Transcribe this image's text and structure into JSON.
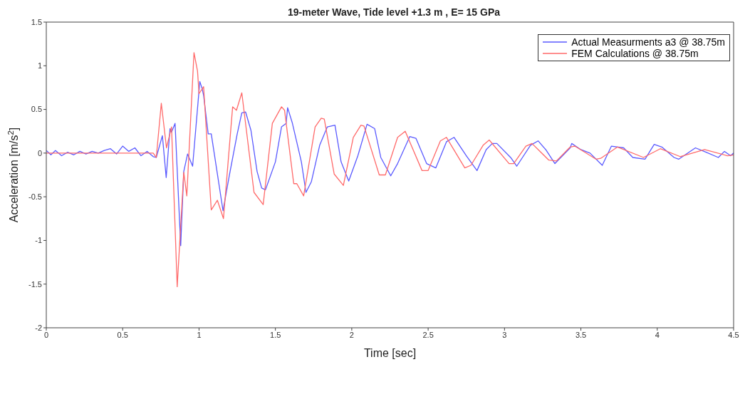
{
  "chart_data": {
    "type": "line",
    "title": "19-meter Wave, Tide level +1.3 m , E= 15 GPa",
    "xlabel": "Time [sec]",
    "ylabel": "Acceleration [m/s$^{2}$]",
    "xlim": [
      0,
      4.5
    ],
    "xticks": [
      0,
      0.5,
      1,
      1.5,
      2,
      2.5,
      3,
      3.5,
      4,
      4.5
    ],
    "ylim": [
      -2,
      1.5
    ],
    "yticks": [
      -2,
      -1.5,
      -1,
      -0.5,
      0,
      0.5,
      1,
      1.5
    ],
    "grid": false,
    "legend": "top right",
    "marker": "none",
    "line_style": "solid",
    "series": [
      {
        "name": "Actual Measurments a3 @ 38.75m",
        "color": "#5a5aff",
        "x": [
          0,
          0.03,
          0.06,
          0.1,
          0.14,
          0.18,
          0.22,
          0.26,
          0.3,
          0.34,
          0.38,
          0.42,
          0.46,
          0.5,
          0.54,
          0.58,
          0.62,
          0.66,
          0.7,
          0.72,
          0.76,
          0.785,
          0.81,
          0.82,
          0.843,
          0.88,
          0.9,
          0.925,
          0.958,
          1.005,
          1.02,
          1.03,
          1.06,
          1.08,
          1.157,
          1.2,
          1.25,
          1.28,
          1.305,
          1.34,
          1.38,
          1.41,
          1.435,
          1.5,
          1.54,
          1.57,
          1.58,
          1.61,
          1.67,
          1.7,
          1.735,
          1.79,
          1.84,
          1.89,
          1.93,
          1.98,
          2.04,
          2.1,
          2.15,
          2.19,
          2.255,
          2.3,
          2.38,
          2.42,
          2.49,
          2.55,
          2.62,
          2.67,
          2.75,
          2.82,
          2.88,
          2.92,
          2.95,
          3.04,
          3.08,
          3.17,
          3.22,
          3.27,
          3.33,
          3.43,
          3.44,
          3.5,
          3.56,
          3.64,
          3.7,
          3.78,
          3.84,
          3.92,
          3.98,
          4.03,
          4.11,
          4.14,
          4.25,
          4.32,
          4.4,
          4.44,
          4.48,
          4.5
        ],
        "values": [
          0.03,
          -0.02,
          0.03,
          -0.03,
          0.01,
          -0.02,
          0.02,
          -0.01,
          0.02,
          0,
          0.03,
          0.05,
          -0.01,
          0.08,
          0.02,
          0.06,
          -0.03,
          0.02,
          -0.04,
          -0.05,
          0.2,
          -0.28,
          0.28,
          0.24,
          0.34,
          -1.06,
          -0.21,
          -0.01,
          -0.15,
          0.82,
          0.74,
          0.66,
          0.22,
          0.22,
          -0.66,
          -0.24,
          0.22,
          0.46,
          0.47,
          0.26,
          -0.21,
          -0.4,
          -0.42,
          -0.1,
          0.3,
          0.34,
          0.52,
          0.35,
          -0.1,
          -0.45,
          -0.33,
          0.09,
          0.3,
          0.32,
          -0.1,
          -0.32,
          -0.03,
          0.33,
          0.28,
          -0.05,
          -0.26,
          -0.12,
          0.19,
          0.17,
          -0.12,
          -0.17,
          0.13,
          0.18,
          -0.03,
          -0.2,
          0.04,
          0.11,
          0.11,
          -0.05,
          -0.15,
          0.09,
          0.14,
          0.04,
          -0.12,
          0.06,
          0.11,
          0.04,
          0,
          -0.14,
          0.08,
          0.06,
          -0.05,
          -0.07,
          0.1,
          0.07,
          -0.05,
          -0.07,
          0.06,
          0.01,
          -0.05,
          0.02,
          -0.03,
          0
        ]
      },
      {
        "name": "FEM Calculations @ 38.75m",
        "color": "#ff6a6a",
        "x": [
          0,
          0.3,
          0.7,
          0.72,
          0.753,
          0.787,
          0.82,
          0.857,
          0.9,
          0.92,
          0.967,
          0.99,
          1,
          1.03,
          1.08,
          1.12,
          1.16,
          1.22,
          1.245,
          1.28,
          1.36,
          1.42,
          1.48,
          1.54,
          1.56,
          1.62,
          1.64,
          1.685,
          1.76,
          1.8,
          1.82,
          1.885,
          1.945,
          2.01,
          2.06,
          2.08,
          2.18,
          2.22,
          2.3,
          2.35,
          2.46,
          2.5,
          2.58,
          2.62,
          2.74,
          2.78,
          2.86,
          2.9,
          3.03,
          3.06,
          3.14,
          3.18,
          3.29,
          3.34,
          3.43,
          3.46,
          3.6,
          3.63,
          3.74,
          3.91,
          4.02,
          4.15,
          4.31,
          4.46,
          4.5
        ],
        "values": [
          0,
          0,
          0,
          -0.05,
          0.57,
          0.06,
          0.3,
          -1.53,
          -0.22,
          -0.49,
          1.15,
          0.94,
          0.68,
          0.76,
          -0.65,
          -0.54,
          -0.75,
          0.53,
          0.49,
          0.69,
          -0.45,
          -0.59,
          0.34,
          0.53,
          0.49,
          -0.35,
          -0.35,
          -0.49,
          0.3,
          0.4,
          0.39,
          -0.24,
          -0.37,
          0.18,
          0.32,
          0.31,
          -0.25,
          -0.25,
          0.18,
          0.25,
          -0.2,
          -0.2,
          0.14,
          0.18,
          -0.17,
          -0.14,
          0.09,
          0.15,
          -0.12,
          -0.12,
          0.08,
          0.11,
          -0.08,
          -0.09,
          0.07,
          0.08,
          -0.07,
          -0.06,
          0.07,
          -0.05,
          0.05,
          -0.04,
          0.04,
          -0.03,
          -0.02
        ]
      }
    ]
  }
}
